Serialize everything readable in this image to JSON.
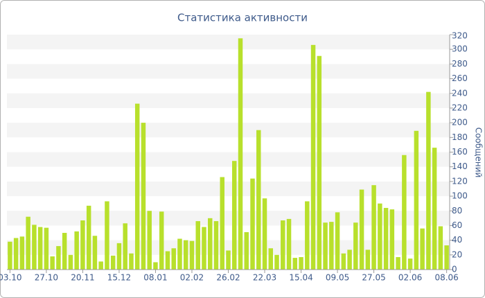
{
  "chart_data": {
    "type": "bar",
    "title": "Статистика активности",
    "y_axis_label": "Сообщений",
    "categories": [
      "03.10",
      null,
      null,
      null,
      null,
      null,
      "27.10",
      null,
      null,
      null,
      null,
      null,
      "20.11",
      null,
      null,
      null,
      null,
      null,
      "15.12",
      null,
      null,
      null,
      null,
      null,
      "08.01",
      null,
      null,
      null,
      null,
      null,
      "02.02",
      null,
      null,
      null,
      null,
      null,
      "26.02",
      null,
      null,
      null,
      null,
      null,
      "22.03",
      null,
      null,
      null,
      null,
      null,
      "15.04",
      null,
      null,
      null,
      null,
      null,
      "09.05",
      null,
      null,
      null,
      null,
      null,
      "27.05",
      null,
      null,
      null,
      null,
      null,
      "02.06",
      null,
      null,
      null,
      null,
      null,
      "08.06"
    ],
    "values": [
      38,
      43,
      45,
      72,
      61,
      58,
      57,
      18,
      32,
      50,
      20,
      52,
      67,
      87,
      46,
      11,
      93,
      19,
      36,
      63,
      22,
      226,
      200,
      80,
      10,
      79,
      25,
      29,
      42,
      40,
      39,
      66,
      58,
      70,
      66,
      126,
      26,
      148,
      315,
      51,
      124,
      190,
      97,
      29,
      20,
      67,
      69,
      16,
      17,
      93,
      306,
      291,
      64,
      65,
      78,
      22,
      27,
      64,
      109,
      27,
      115,
      90,
      84,
      82,
      17,
      156,
      15,
      189,
      56,
      242,
      166,
      59,
      33
    ],
    "color": "#b8e02c",
    "ylim": [
      0,
      320
    ],
    "yticks": [
      0,
      20,
      40,
      60,
      80,
      100,
      120,
      140,
      160,
      180,
      200,
      220,
      240,
      260,
      280,
      300,
      320
    ],
    "grid": true
  }
}
